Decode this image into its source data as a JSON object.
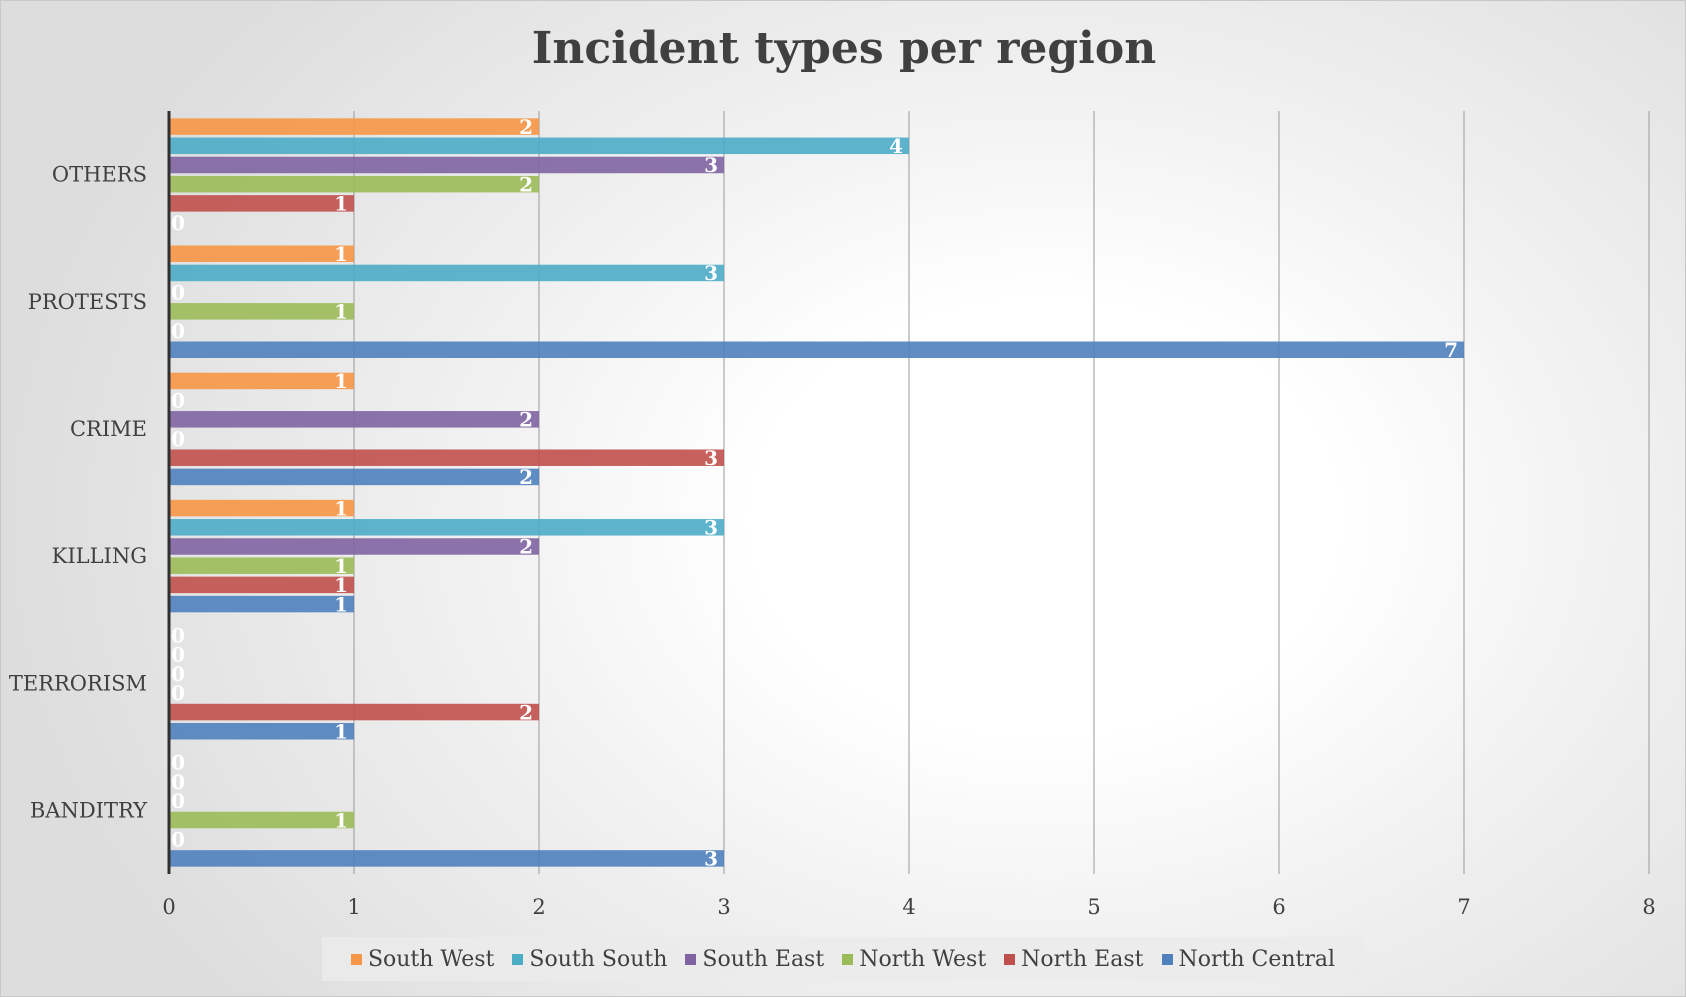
{
  "chart_data": {
    "type": "bar",
    "orientation": "horizontal",
    "title": "Incident types per region",
    "categories": [
      "BANDITRY",
      "TERRORISM",
      "KILLING",
      "CRIME",
      "PROTESTS",
      "OTHERS"
    ],
    "series": [
      {
        "name": "South West",
        "color": "#F79646",
        "values": [
          0,
          0,
          1,
          1,
          1,
          2
        ]
      },
      {
        "name": "South South",
        "color": "#4BACC6",
        "values": [
          0,
          0,
          3,
          0,
          3,
          4
        ]
      },
      {
        "name": "South East",
        "color": "#8064A2",
        "values": [
          0,
          0,
          2,
          2,
          0,
          3
        ]
      },
      {
        "name": "North West",
        "color": "#9BBB59",
        "values": [
          1,
          0,
          1,
          0,
          1,
          2
        ]
      },
      {
        "name": "North East",
        "color": "#C0504D",
        "values": [
          0,
          2,
          1,
          3,
          0,
          1
        ]
      },
      {
        "name": "North Central",
        "color": "#4F81BD",
        "values": [
          3,
          1,
          1,
          2,
          7,
          0
        ]
      }
    ],
    "xlim": [
      0,
      8
    ],
    "xticks": [
      0,
      1,
      2,
      3,
      4,
      5,
      6,
      7,
      8
    ],
    "grid": true,
    "legend_position": "bottom",
    "data_labels": true
  }
}
